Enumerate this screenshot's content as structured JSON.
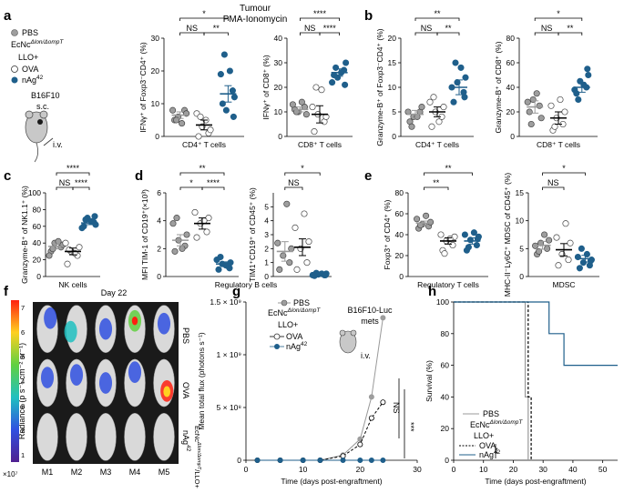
{
  "colors": {
    "pbs": "#9e9e9e",
    "ova": "#ffffff",
    "nag": "#1f5f8b",
    "stroke": "#333333"
  },
  "header": {
    "title": "Tumour",
    "subtitle": "PMA-Ionomycin"
  },
  "panel_labels": [
    "a",
    "b",
    "c",
    "d",
    "e",
    "f",
    "g",
    "h"
  ],
  "legend_a": {
    "pbs": "PBS",
    "ecnc": "EcNc",
    "ecnc_sup": "Δlon/ΔompT",
    "llo": "LLO+",
    "ova": "OVA",
    "nag": "nAg",
    "nag_sup": "42",
    "b16": "B16F10",
    "sc": "s.c.",
    "iv": "i.v."
  },
  "chart_data": [
    {
      "id": "a1",
      "type": "scatter",
      "title": "",
      "xlabel": "CD4⁺ T cells",
      "ylabel": "IFNγ⁺ of Foxp3⁻CD4⁺ (%)",
      "ylim": [
        0,
        30
      ],
      "yticks": [
        0,
        10,
        20,
        30
      ],
      "groups": [
        {
          "name": "PBS",
          "mean": 6.5,
          "sem": 1.0,
          "points": [
            5,
            8,
            6,
            7,
            8,
            4,
            5
          ]
        },
        {
          "name": "OVA",
          "mean": 3.5,
          "sem": 1.5,
          "points": [
            0,
            1,
            3,
            2,
            7,
            5,
            6
          ]
        },
        {
          "name": "nAg42",
          "mean": 13,
          "sem": 2.5,
          "points": [
            10,
            14,
            8,
            12,
            19,
            20,
            25,
            6
          ]
        }
      ],
      "comparisons": [
        {
          "a": 0,
          "b": 1,
          "label": "NS"
        },
        {
          "a": 1,
          "b": 2,
          "label": "**"
        },
        {
          "a": 0,
          "b": 2,
          "label": "*"
        }
      ]
    },
    {
      "id": "a2",
      "type": "scatter",
      "xlabel": "CD8⁺ T cells",
      "ylabel": "IFNγ⁺ of CD8⁺ (%)",
      "ylim": [
        0,
        40
      ],
      "yticks": [
        0,
        10,
        20,
        30,
        40
      ],
      "groups": [
        {
          "name": "PBS",
          "mean": 11,
          "sem": 1.0,
          "points": [
            11,
            12,
            10,
            9,
            13,
            14,
            10
          ]
        },
        {
          "name": "OVA",
          "mean": 9,
          "sem": 3.5,
          "points": [
            2,
            6,
            9,
            8,
            12,
            19,
            20
          ]
        },
        {
          "name": "nAg42",
          "mean": 26,
          "sem": 1.5,
          "points": [
            25,
            27,
            24,
            30,
            22,
            26,
            28,
            21
          ]
        }
      ],
      "comparisons": [
        {
          "a": 0,
          "b": 1,
          "label": "NS"
        },
        {
          "a": 1,
          "b": 2,
          "label": "****"
        },
        {
          "a": 0,
          "b": 2,
          "label": "****"
        }
      ]
    },
    {
      "id": "b1",
      "type": "scatter",
      "xlabel": "CD4⁺ T cells",
      "ylabel": "Granzyme-B⁺ of Foxp3⁻CD4⁺ (%)",
      "ylim": [
        0,
        20
      ],
      "yticks": [
        0,
        5,
        10,
        15,
        20
      ],
      "groups": [
        {
          "name": "PBS",
          "mean": 4.5,
          "sem": 0.8,
          "points": [
            3,
            5,
            4,
            6,
            5,
            4,
            2
          ]
        },
        {
          "name": "OVA",
          "mean": 5,
          "sem": 1.0,
          "points": [
            2,
            4,
            5,
            6,
            7,
            3,
            8
          ]
        },
        {
          "name": "nAg42",
          "mean": 10,
          "sem": 1.5,
          "points": [
            7,
            9,
            11,
            12,
            10,
            14,
            15,
            8
          ]
        }
      ],
      "comparisons": [
        {
          "a": 0,
          "b": 1,
          "label": "NS"
        },
        {
          "a": 1,
          "b": 2,
          "label": "**"
        },
        {
          "a": 0,
          "b": 2,
          "label": "**"
        }
      ]
    },
    {
      "id": "b2",
      "type": "scatter",
      "xlabel": "CD8⁺ T cells",
      "ylabel": "Granzyme-B⁺ of CD8⁺ (%)",
      "ylim": [
        0,
        80
      ],
      "yticks": [
        0,
        20,
        40,
        60,
        80
      ],
      "groups": [
        {
          "name": "PBS",
          "mean": 24,
          "sem": 5,
          "points": [
            20,
            25,
            30,
            15,
            28,
            35,
            10
          ]
        },
        {
          "name": "OVA",
          "mean": 15,
          "sem": 5,
          "points": [
            5,
            10,
            15,
            20,
            25,
            30,
            8
          ]
        },
        {
          "name": "nAg42",
          "mean": 40,
          "sem": 4,
          "points": [
            35,
            40,
            45,
            50,
            38,
            42,
            30,
            55
          ]
        }
      ],
      "comparisons": [
        {
          "a": 0,
          "b": 1,
          "label": "NS"
        },
        {
          "a": 1,
          "b": 2,
          "label": "**"
        },
        {
          "a": 0,
          "b": 2,
          "label": "*"
        }
      ]
    },
    {
      "id": "c",
      "type": "scatter",
      "xlabel": "NK cells",
      "ylabel": "Granzyme-B⁺ of NK1.1⁺ (%)",
      "ylim": [
        0,
        100
      ],
      "yticks": [
        0,
        20,
        40,
        60,
        80,
        100
      ],
      "groups": [
        {
          "name": "PBS",
          "mean": 36,
          "sem": 3,
          "points": [
            30,
            35,
            40,
            38,
            25,
            42,
            33
          ]
        },
        {
          "name": "OVA",
          "mean": 30,
          "sem": 4,
          "points": [
            15,
            25,
            30,
            35,
            40,
            28,
            32
          ]
        },
        {
          "name": "nAg42",
          "mean": 64,
          "sem": 2,
          "points": [
            60,
            65,
            70,
            62,
            58,
            66,
            68,
            72
          ]
        }
      ],
      "comparisons": [
        {
          "a": 0,
          "b": 1,
          "label": "NS"
        },
        {
          "a": 1,
          "b": 2,
          "label": "****"
        },
        {
          "a": 0,
          "b": 2,
          "label": "****"
        }
      ]
    },
    {
      "id": "d1",
      "type": "scatter",
      "xlabel": "",
      "ylabel": "MFI TIM-1 of CD19⁺(×10³)",
      "ylim": [
        0,
        6
      ],
      "yticks": [
        0,
        2,
        4,
        6
      ],
      "groups": [
        {
          "name": "PBS",
          "mean": 2.6,
          "sem": 0.4,
          "points": [
            1.8,
            2.2,
            2.6,
            3.0,
            3.8,
            2.0,
            4.2
          ]
        },
        {
          "name": "OVA",
          "mean": 3.8,
          "sem": 0.4,
          "points": [
            2.8,
            3.2,
            3.8,
            4.2,
            4.6,
            4.0
          ]
        },
        {
          "name": "nAg42",
          "mean": 0.9,
          "sem": 0.15,
          "points": [
            0.5,
            0.7,
            0.9,
            1.0,
            1.2,
            0.8,
            1.4,
            0.6
          ]
        }
      ],
      "comparisons": [
        {
          "a": 0,
          "b": 1,
          "label": "*"
        },
        {
          "a": 1,
          "b": 2,
          "label": "****"
        },
        {
          "a": 0,
          "b": 2,
          "label": "**"
        }
      ]
    },
    {
      "id": "d2",
      "type": "scatter",
      "xlabel": "",
      "ylabel": "TIM1⁺CD19⁺ of CD45⁺ (%)",
      "ylim": [
        0,
        6
      ],
      "yticks": [
        0,
        1,
        2,
        3,
        4,
        5
      ],
      "groups": [
        {
          "name": "PBS",
          "mean": 1.8,
          "sem": 0.7,
          "points": [
            0.5,
            1.0,
            1.5,
            2.0,
            2.4,
            5.2
          ]
        },
        {
          "name": "OVA",
          "mean": 2.1,
          "sem": 0.6,
          "points": [
            0.5,
            1.0,
            2.0,
            2.5,
            3.5,
            4.5
          ]
        },
        {
          "name": "nAg42",
          "mean": 0.15,
          "sem": 0.05,
          "points": [
            0.05,
            0.1,
            0.15,
            0.2,
            0.1,
            0.2,
            0.25,
            0.1
          ]
        }
      ],
      "comparisons": [
        {
          "a": 0,
          "b": 1,
          "label": "NS"
        },
        {
          "a": 0,
          "b": 2,
          "label": "*"
        }
      ]
    },
    {
      "id": "e1",
      "type": "scatter",
      "xlabel": "Regulatory T cells",
      "ylabel": "Foxp3⁺ of CD4⁺ (%)",
      "ylim": [
        0,
        80
      ],
      "yticks": [
        0,
        20,
        40,
        60,
        80
      ],
      "groups": [
        {
          "name": "PBS",
          "mean": 51,
          "sem": 2,
          "points": [
            46,
            48,
            50,
            52,
            55,
            58,
            49
          ]
        },
        {
          "name": "OVA",
          "mean": 34,
          "sem": 3,
          "points": [
            25,
            30,
            34,
            38,
            40,
            36,
            22
          ]
        },
        {
          "name": "nAg42",
          "mean": 34,
          "sem": 3,
          "points": [
            25,
            30,
            35,
            38,
            40,
            42,
            28,
            36
          ]
        }
      ],
      "comparisons": [
        {
          "a": 0,
          "b": 1,
          "label": "**"
        },
        {
          "a": 0,
          "b": 2,
          "label": "**"
        }
      ]
    },
    {
      "id": "e2",
      "type": "scatter",
      "xlabel": "MDSC",
      "ylabel": "MHC-II⁻Ly6C⁺ MDSC of CD45⁺ (%)",
      "ylim": [
        0,
        15
      ],
      "yticks": [
        0,
        5,
        10,
        15
      ],
      "groups": [
        {
          "name": "PBS",
          "mean": 5.6,
          "sem": 0.7,
          "points": [
            4,
            5,
            6,
            6.5,
            5.5,
            7.5,
            4.5
          ]
        },
        {
          "name": "OVA",
          "mean": 4.8,
          "sem": 1.1,
          "points": [
            2,
            3,
            4,
            6,
            7,
            9.5
          ]
        },
        {
          "name": "nAg42",
          "mean": 3.2,
          "sem": 0.6,
          "points": [
            1.5,
            2,
            2.5,
            3,
            3.5,
            4,
            5,
            2.8
          ]
        }
      ],
      "comparisons": [
        {
          "a": 0,
          "b": 1,
          "label": "NS"
        },
        {
          "a": 0,
          "b": 2,
          "label": "*"
        }
      ]
    },
    {
      "id": "g",
      "type": "line",
      "xlabel": "Time (days post-engraftment)",
      "ylabel": "Mean total flux (photons s⁻¹)",
      "xlim": [
        0,
        30
      ],
      "xticks": [
        0,
        10,
        20,
        30
      ],
      "ylim": [
        0,
        1500000000.0
      ],
      "ytick_labels": [
        "0",
        "5 × 10⁸",
        "1 × 10⁹",
        "1.5 × 10⁹"
      ],
      "x": [
        2,
        6,
        10,
        13,
        17,
        20,
        22,
        24
      ],
      "series": [
        {
          "name": "PBS",
          "values": [
            0,
            0,
            0,
            0,
            50000000.0,
            200000000.0,
            600000000.0,
            1350000000.0
          ]
        },
        {
          "name": "OVA",
          "values": [
            0,
            0,
            0,
            0,
            40000000.0,
            150000000.0,
            400000000.0,
            550000000.0
          ]
        },
        {
          "name": "nAg42",
          "values": [
            0,
            0,
            0,
            0,
            0,
            0,
            0,
            0
          ]
        }
      ],
      "annotations": {
        "title": "B16F10-Luc",
        "title2": "mets",
        "iv": "i.v.",
        "ns": "NS",
        "sig": "***"
      }
    },
    {
      "id": "h",
      "type": "line",
      "xlabel": "Time (days post-engraftment)",
      "ylabel": "Survival (%)",
      "xlim": [
        0,
        55
      ],
      "xticks": [
        0,
        10,
        20,
        30,
        40,
        50
      ],
      "ylim": [
        0,
        100
      ],
      "yticks": [
        0,
        20,
        40,
        60,
        80,
        100
      ],
      "series": [
        {
          "name": "PBS",
          "steps": [
            [
              0,
              100
            ],
            [
              24,
              100
            ],
            [
              24,
              40
            ],
            [
              25,
              40
            ],
            [
              25,
              0
            ]
          ]
        },
        {
          "name": "OVA",
          "steps": [
            [
              0,
              100
            ],
            [
              25,
              100
            ],
            [
              25,
              40
            ],
            [
              26,
              40
            ],
            [
              26,
              0
            ]
          ]
        },
        {
          "name": "nAg42",
          "steps": [
            [
              0,
              100
            ],
            [
              32,
              100
            ],
            [
              32,
              80
            ],
            [
              37,
              80
            ],
            [
              37,
              60
            ],
            [
              55,
              60
            ]
          ]
        }
      ],
      "sig": "**"
    }
  ],
  "panel_d": {
    "xlabel": "Regulatory B cells"
  },
  "panel_f": {
    "title": "Day 22",
    "rows": [
      "PBS",
      "OVA",
      "nAg"
    ],
    "row3_sup": "42",
    "row3_sub": "EcNc",
    "row3_sub_sup": "Δlon/ΔompT",
    "row3_sub_tail": "/LLO+",
    "cols": [
      "M1",
      "M2",
      "M3",
      "M4",
      "M5"
    ],
    "colorbar_label": "Radiance (p s⁻¹ cm⁻² sr⁻¹)",
    "colorbar_ticks": [
      "7",
      "6",
      "5",
      "4",
      "3",
      "2",
      "1"
    ],
    "scale": "×10⁷"
  },
  "legend_g": {
    "pbs": "PBS",
    "ecnc": "EcNc",
    "ecnc_sup": "Δlon/ΔompT",
    "llo": "LLO+",
    "ova": "OVA",
    "nag": "nAg",
    "nag_sup": "42"
  },
  "legend_h": {
    "pbs": "PBS",
    "ecnc": "EcNc",
    "ecnc_sup": "Δlon/ΔompT",
    "llo": "LLO+",
    "ova": "OVA",
    "nag": "nAg",
    "nag_sup": "42"
  }
}
